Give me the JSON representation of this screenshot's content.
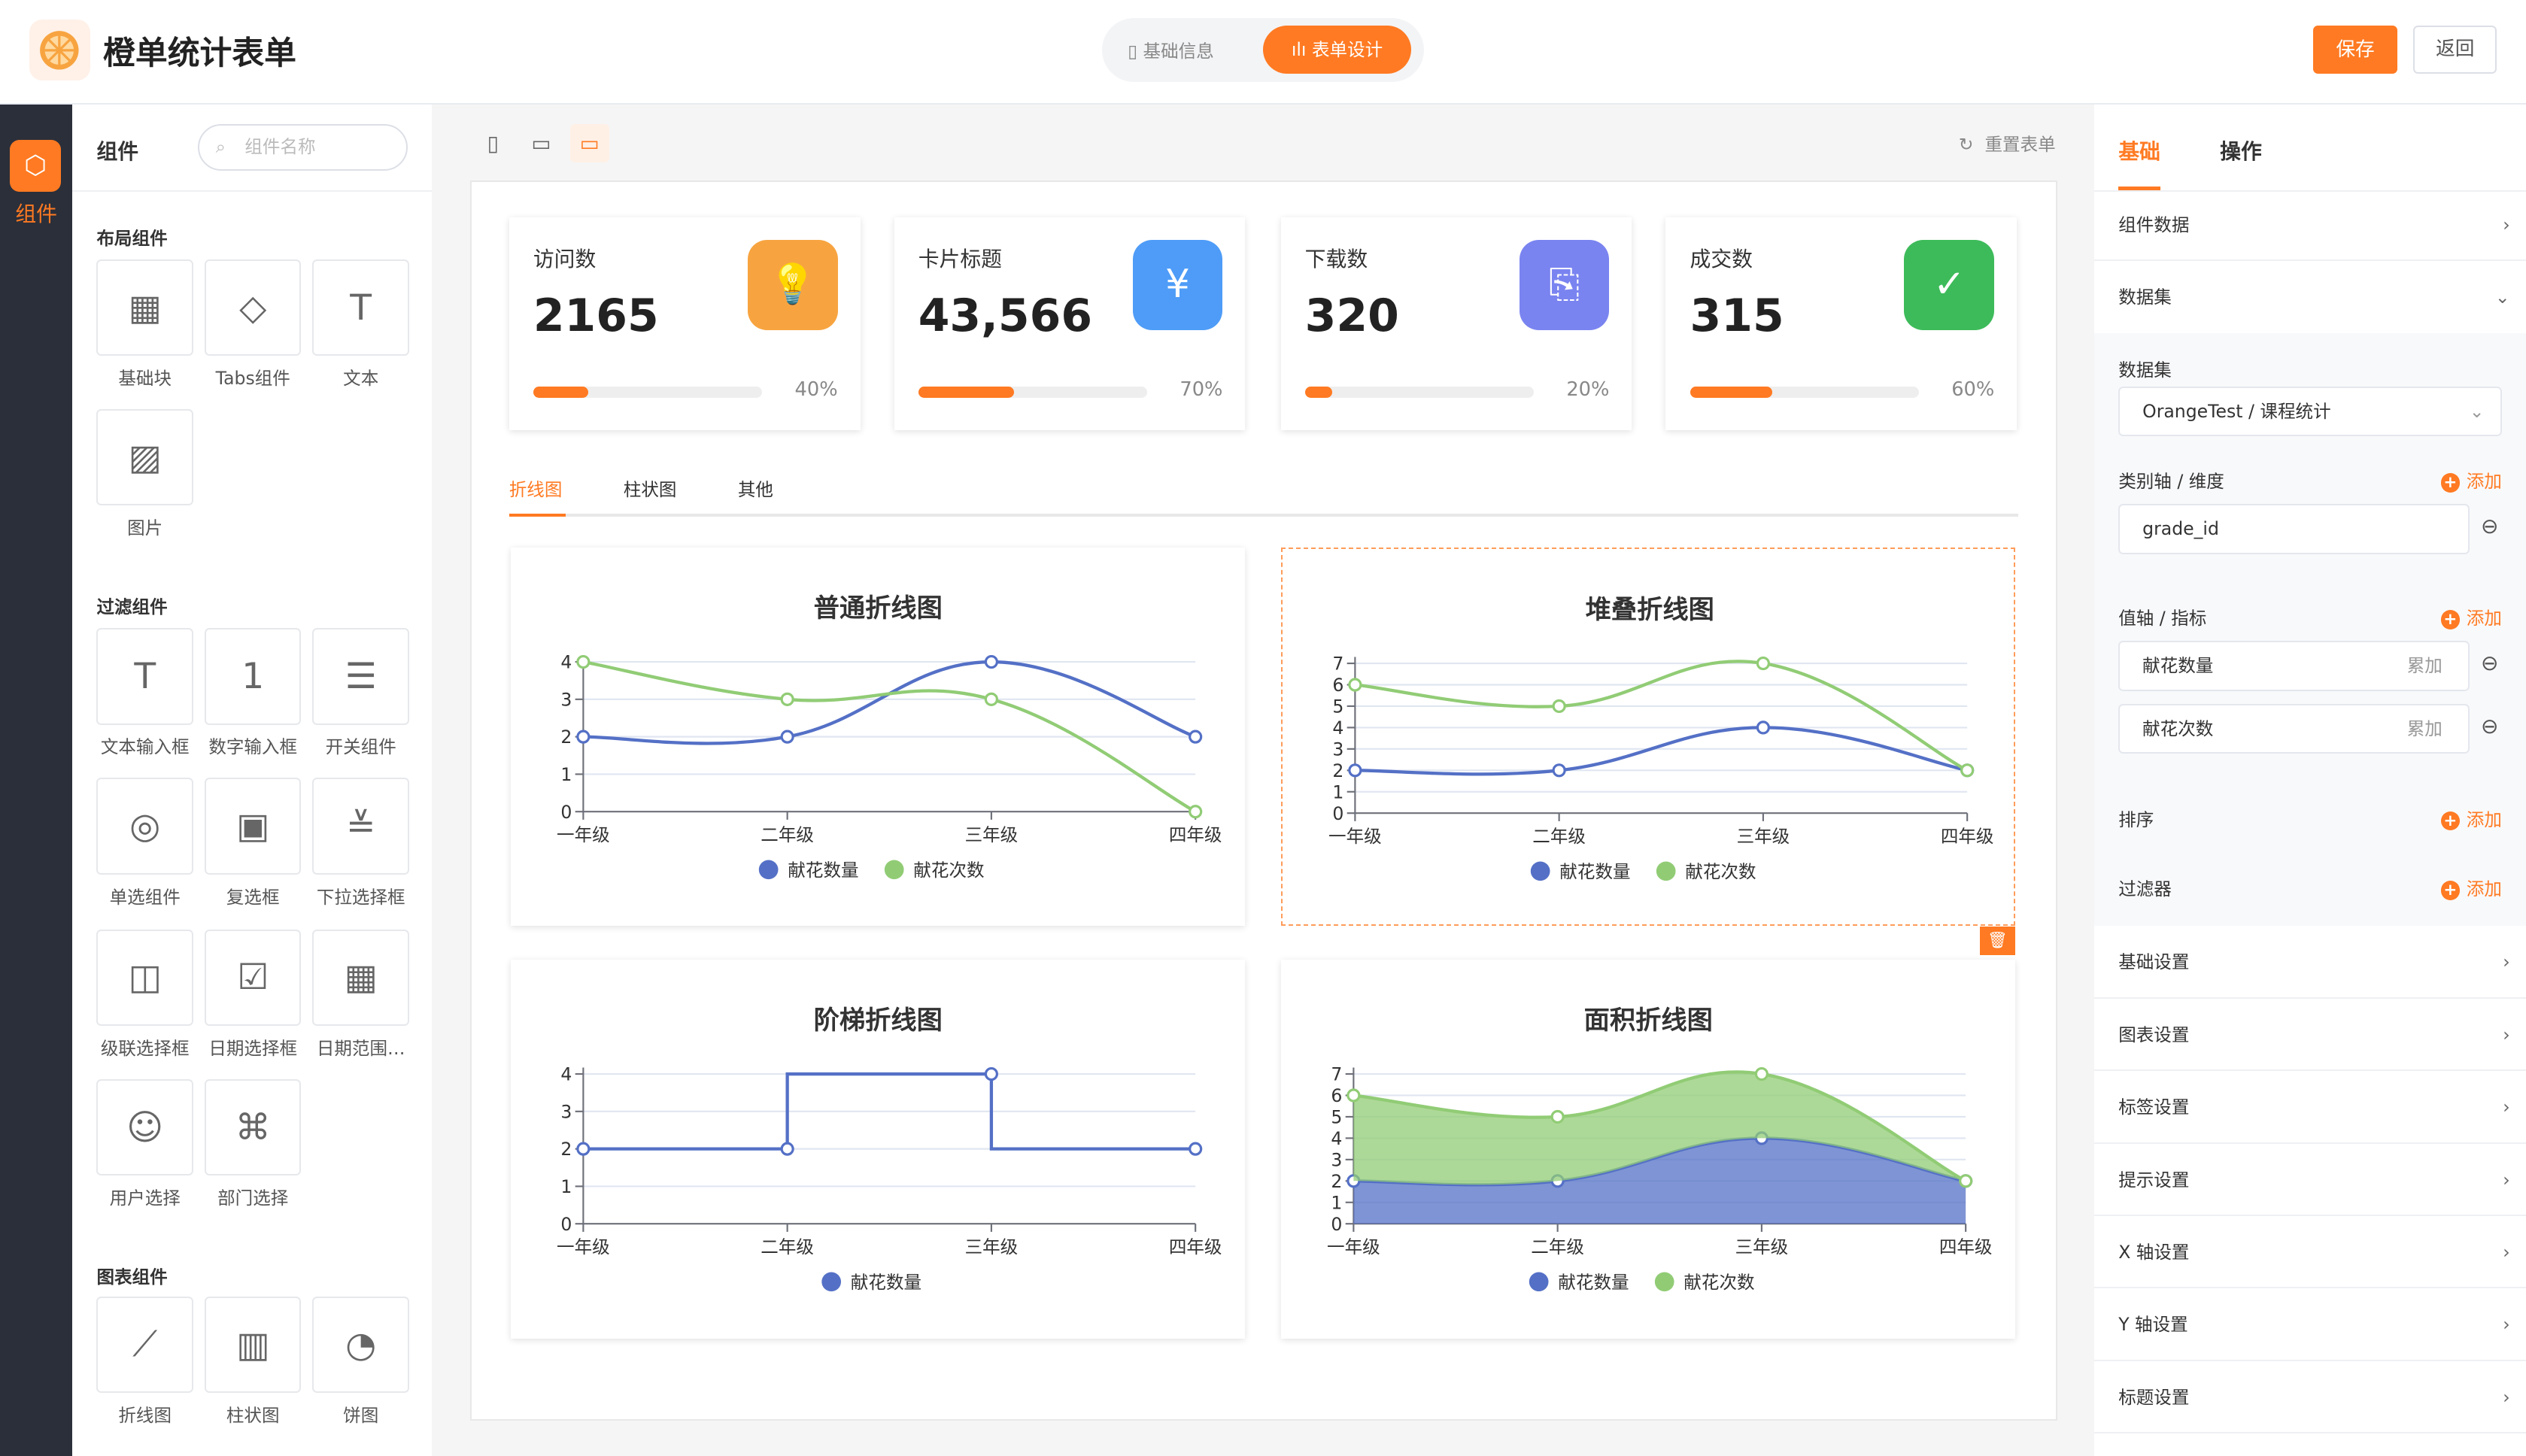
{
  "header": {
    "title": "橙单统计表单",
    "seg_basic": "基础信息",
    "seg_design": "表单设计",
    "save": "保存",
    "back": "返回"
  },
  "rail": {
    "label": "组件"
  },
  "palette": {
    "title": "组件",
    "search_placeholder": "组件名称",
    "sections": [
      {
        "title": "布局组件",
        "items": [
          {
            "label": "基础块",
            "icon": "grid-icon",
            "glyph": "▦"
          },
          {
            "label": "Tabs组件",
            "icon": "tag-icon",
            "glyph": "◇"
          },
          {
            "label": "文本",
            "icon": "text-icon",
            "glyph": "T"
          },
          {
            "label": "图片",
            "icon": "image-icon",
            "glyph": "▨"
          }
        ]
      },
      {
        "title": "过滤组件",
        "items": [
          {
            "label": "文本输入框",
            "icon": "text-input-icon",
            "glyph": "T"
          },
          {
            "label": "数字输入框",
            "icon": "number-input-icon",
            "glyph": "1"
          },
          {
            "label": "开关组件",
            "icon": "switch-icon",
            "glyph": "☰"
          },
          {
            "label": "单选组件",
            "icon": "radio-icon",
            "glyph": "◎"
          },
          {
            "label": "复选框",
            "icon": "checkbox-icon",
            "glyph": "▣"
          },
          {
            "label": "下拉选择框",
            "icon": "dropdown-icon",
            "glyph": "≚"
          },
          {
            "label": "级联选择框",
            "icon": "cascader-icon",
            "glyph": "◫"
          },
          {
            "label": "日期选择框",
            "icon": "date-icon",
            "glyph": "☑"
          },
          {
            "label": "日期范围…",
            "icon": "date-range-icon",
            "glyph": "▦"
          },
          {
            "label": "用户选择",
            "icon": "user-icon",
            "glyph": "☺"
          },
          {
            "label": "部门选择",
            "icon": "org-icon",
            "glyph": "⌘"
          }
        ]
      },
      {
        "title": "图表组件",
        "items": [
          {
            "label": "折线图",
            "icon": "line-chart-icon",
            "glyph": "⟋"
          },
          {
            "label": "柱状图",
            "icon": "bar-chart-icon",
            "glyph": "▥"
          },
          {
            "label": "饼图",
            "icon": "pie-chart-icon",
            "glyph": "◔"
          }
        ]
      }
    ]
  },
  "canvas": {
    "reset": "重置表单"
  },
  "stats": [
    {
      "label": "访问数",
      "value": "2165",
      "percent": 40,
      "percent_text": "40%",
      "color": "#f7a440",
      "icon": "bulb-icon",
      "glyph": "💡"
    },
    {
      "label": "卡片标题",
      "value": "43,566",
      "percent": 70,
      "percent_text": "70%",
      "color": "#4e9cf7",
      "icon": "yen-icon",
      "glyph": "¥"
    },
    {
      "label": "下载数",
      "value": "320",
      "percent": 20,
      "percent_text": "20%",
      "color": "#7a84f0",
      "icon": "file-upload-icon",
      "glyph": "⎘"
    },
    {
      "label": "成交数",
      "value": "315",
      "percent": 60,
      "percent_text": "60%",
      "color": "#3dbb5a",
      "icon": "clipboard-check-icon",
      "glyph": "✓"
    }
  ],
  "tabs": [
    "折线图",
    "柱状图",
    "其他"
  ],
  "chart_data": [
    {
      "type": "line",
      "title": "普通折线图",
      "smooth": true,
      "categories": [
        "一年级",
        "二年级",
        "三年级",
        "四年级"
      ],
      "ylim": [
        0,
        4
      ],
      "yticks": [
        0,
        1,
        2,
        3,
        4
      ],
      "series": [
        {
          "name": "献花数量",
          "values": [
            2,
            2,
            4,
            2
          ],
          "color": "#5470c6"
        },
        {
          "name": "献花次数",
          "values": [
            4,
            3,
            3,
            0
          ],
          "color": "#91cc75"
        }
      ]
    },
    {
      "type": "line",
      "title": "堆叠折线图",
      "smooth": true,
      "stacked": true,
      "categories": [
        "一年级",
        "二年级",
        "三年级",
        "四年级"
      ],
      "ylim": [
        0,
        7
      ],
      "yticks": [
        0,
        1,
        2,
        3,
        4,
        5,
        6,
        7
      ],
      "series": [
        {
          "name": "献花数量",
          "values": [
            2,
            2,
            4,
            2
          ],
          "color": "#5470c6"
        },
        {
          "name": "献花次数",
          "values": [
            4,
            3,
            3,
            0
          ],
          "color": "#91cc75"
        }
      ]
    },
    {
      "type": "line",
      "title": "阶梯折线图",
      "step": true,
      "categories": [
        "一年级",
        "二年级",
        "三年级",
        "四年级"
      ],
      "ylim": [
        0,
        4
      ],
      "yticks": [
        0,
        1,
        2,
        3,
        4
      ],
      "series": [
        {
          "name": "献花数量",
          "values": [
            2,
            2,
            4,
            2
          ],
          "color": "#5470c6"
        }
      ]
    },
    {
      "type": "area",
      "title": "面积折线图",
      "smooth": true,
      "stacked": true,
      "categories": [
        "一年级",
        "二年级",
        "三年级",
        "四年级"
      ],
      "ylim": [
        0,
        7
      ],
      "yticks": [
        0,
        1,
        2,
        3,
        4,
        5,
        6,
        7
      ],
      "series": [
        {
          "name": "献花数量",
          "values": [
            2,
            2,
            4,
            2
          ],
          "color": "#5470c6"
        },
        {
          "name": "献花次数",
          "values": [
            4,
            3,
            3,
            0
          ],
          "color": "#91cc75"
        }
      ]
    }
  ],
  "right": {
    "tab_basic": "基础",
    "tab_action": "操作",
    "component_data": "组件数据",
    "dataset_section": "数据集",
    "dataset_label": "数据集",
    "dataset_value": "OrangeTest / 课程统计",
    "dimension_label": "类别轴 / 维度",
    "add": "添加",
    "dimension_value": "grade_id",
    "metric_label": "值轴 / 指标",
    "metrics": [
      {
        "name": "献花数量",
        "agg": "累加"
      },
      {
        "name": "献花次数",
        "agg": "累加"
      }
    ],
    "sort_label": "排序",
    "filter_label": "过滤器",
    "sections": [
      "基础设置",
      "图表设置",
      "标签设置",
      "提示设置",
      "X 轴设置",
      "Y 轴设置",
      "标题设置"
    ]
  },
  "accent": "#ff7a22"
}
